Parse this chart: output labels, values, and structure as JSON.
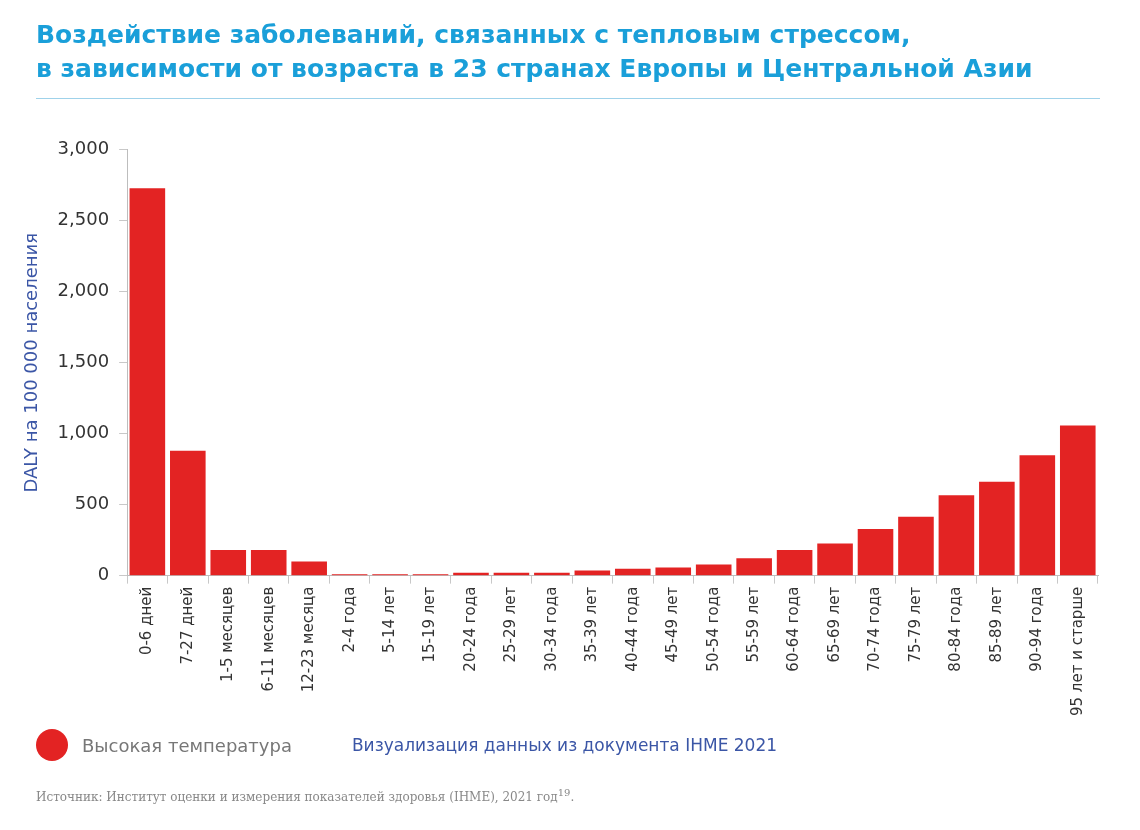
{
  "chart_data": {
    "type": "bar",
    "title": "Воздействие заболеваний, связанных с тепловым стрессом,\nв зависимости от возраста в 23 странах Европы и Центральной Азии",
    "ylabel": "DALY на 100 000 населения",
    "categories": [
      "0-6 дней",
      "7-27 дней",
      "1-5 месяцев",
      "6-11 месяцев",
      "12-23 месяца",
      "2-4 года",
      "5-14 лет",
      "15-19 лет",
      "20-24 года",
      "25-29 лет",
      "30-34 года",
      "35-39 лет",
      "40-44 года",
      "45-49 лет",
      "50-54 года",
      "55-59 лет",
      "60-64 года",
      "65-69 лет",
      "70-74 года",
      "75-79 лет",
      "80-84 года",
      "85-89 лет",
      "90-94 года",
      "95 лет и старше"
    ],
    "series": [
      {
        "name": "Высокая температура",
        "color": "#e32323",
        "values": [
          2730,
          880,
          180,
          180,
          100,
          10,
          10,
          10,
          20,
          20,
          20,
          36,
          49,
          57,
          78,
          122,
          180,
          227,
          329,
          415,
          567,
          661,
          849,
          1058
        ]
      }
    ],
    "ylim": [
      0,
      3000
    ],
    "yticks": [
      {
        "value": 0,
        "label": "0"
      },
      {
        "value": 500,
        "label": "500"
      },
      {
        "value": 1000,
        "label": "1,000"
      },
      {
        "value": 1500,
        "label": "1,500"
      },
      {
        "value": 2000,
        "label": "2,000"
      },
      {
        "value": 2500,
        "label": "2,500"
      },
      {
        "value": 3000,
        "label": "3,000"
      }
    ],
    "grid": false,
    "legend": "bottom left",
    "annotations": [
      "Визуализация данных из документа IHME 2021",
      "Источник: Институт оценки и измерения показателей здоровья (IHME), 2021 год$^{19}$."
    ]
  }
}
